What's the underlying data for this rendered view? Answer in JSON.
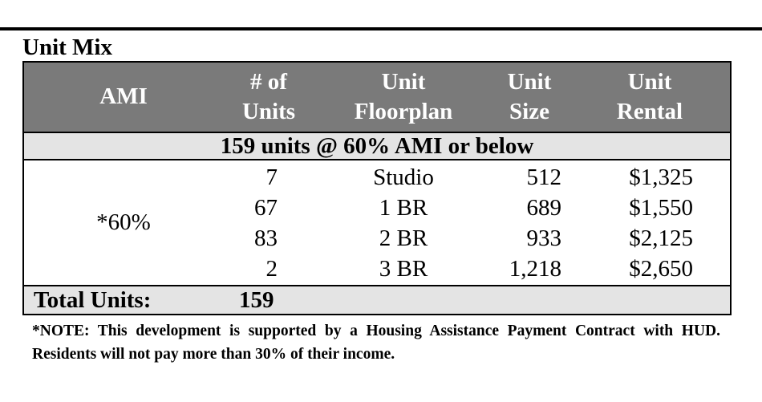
{
  "section_title": "Unit Mix",
  "table": {
    "headers": {
      "ami": "AMI",
      "units_line1": "# of",
      "units_line2": "Units",
      "floorplan_line1": "Unit",
      "floorplan_line2": "Floorplan",
      "size_line1": "Unit",
      "size_line2": "Size",
      "rental_line1": "Unit",
      "rental_line2": "Rental"
    },
    "group_header": "159 units @ 60% AMI or below",
    "ami_value": "*60%",
    "rows": [
      {
        "units": "7",
        "floorplan": "Studio",
        "size": "512",
        "rental": "$1,325"
      },
      {
        "units": "67",
        "floorplan": "1 BR",
        "size": "689",
        "rental": "$1,550"
      },
      {
        "units": "83",
        "floorplan": "2 BR",
        "size": "933",
        "rental": "$2,125"
      },
      {
        "units": "2",
        "floorplan": "3 BR",
        "size": "1,218",
        "rental": "$2,650"
      }
    ],
    "total_label": "Total Units:",
    "total_value": "159"
  },
  "note": "*NOTE: This development is supported by a Housing Assistance Payment Contract with HUD. Residents will not pay more than 30% of their income."
}
